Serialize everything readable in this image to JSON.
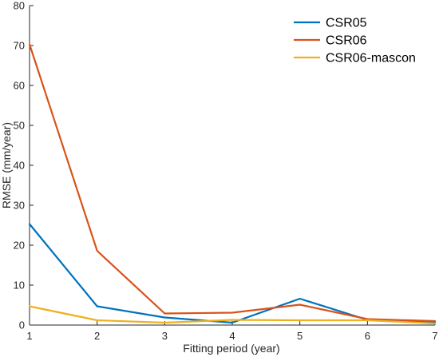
{
  "chart_data": {
    "type": "line",
    "xlabel": "Fitting period (year)",
    "ylabel": "RMSE (mm/year)",
    "xlim": [
      1,
      7
    ],
    "ylim": [
      0,
      80
    ],
    "xticks": [
      1,
      2,
      3,
      4,
      5,
      6,
      7
    ],
    "yticks": [
      0,
      10,
      20,
      30,
      40,
      50,
      60,
      70,
      80
    ],
    "grid": false,
    "legend_position": "top-right",
    "x": [
      1,
      2,
      3,
      4,
      5,
      6,
      7
    ],
    "series": [
      {
        "name": "CSR05",
        "color": "#0072BD",
        "values": [
          25.3,
          4.7,
          1.9,
          0.6,
          6.6,
          1.3,
          0.7
        ]
      },
      {
        "name": "CSR06",
        "color": "#D95319",
        "values": [
          70.3,
          18.6,
          2.9,
          3.1,
          5.1,
          1.5,
          1.0
        ]
      },
      {
        "name": "CSR06-mascon",
        "color": "#EDB120",
        "values": [
          4.7,
          1.2,
          0.6,
          1.3,
          1.2,
          1.2,
          0.4
        ]
      }
    ]
  }
}
